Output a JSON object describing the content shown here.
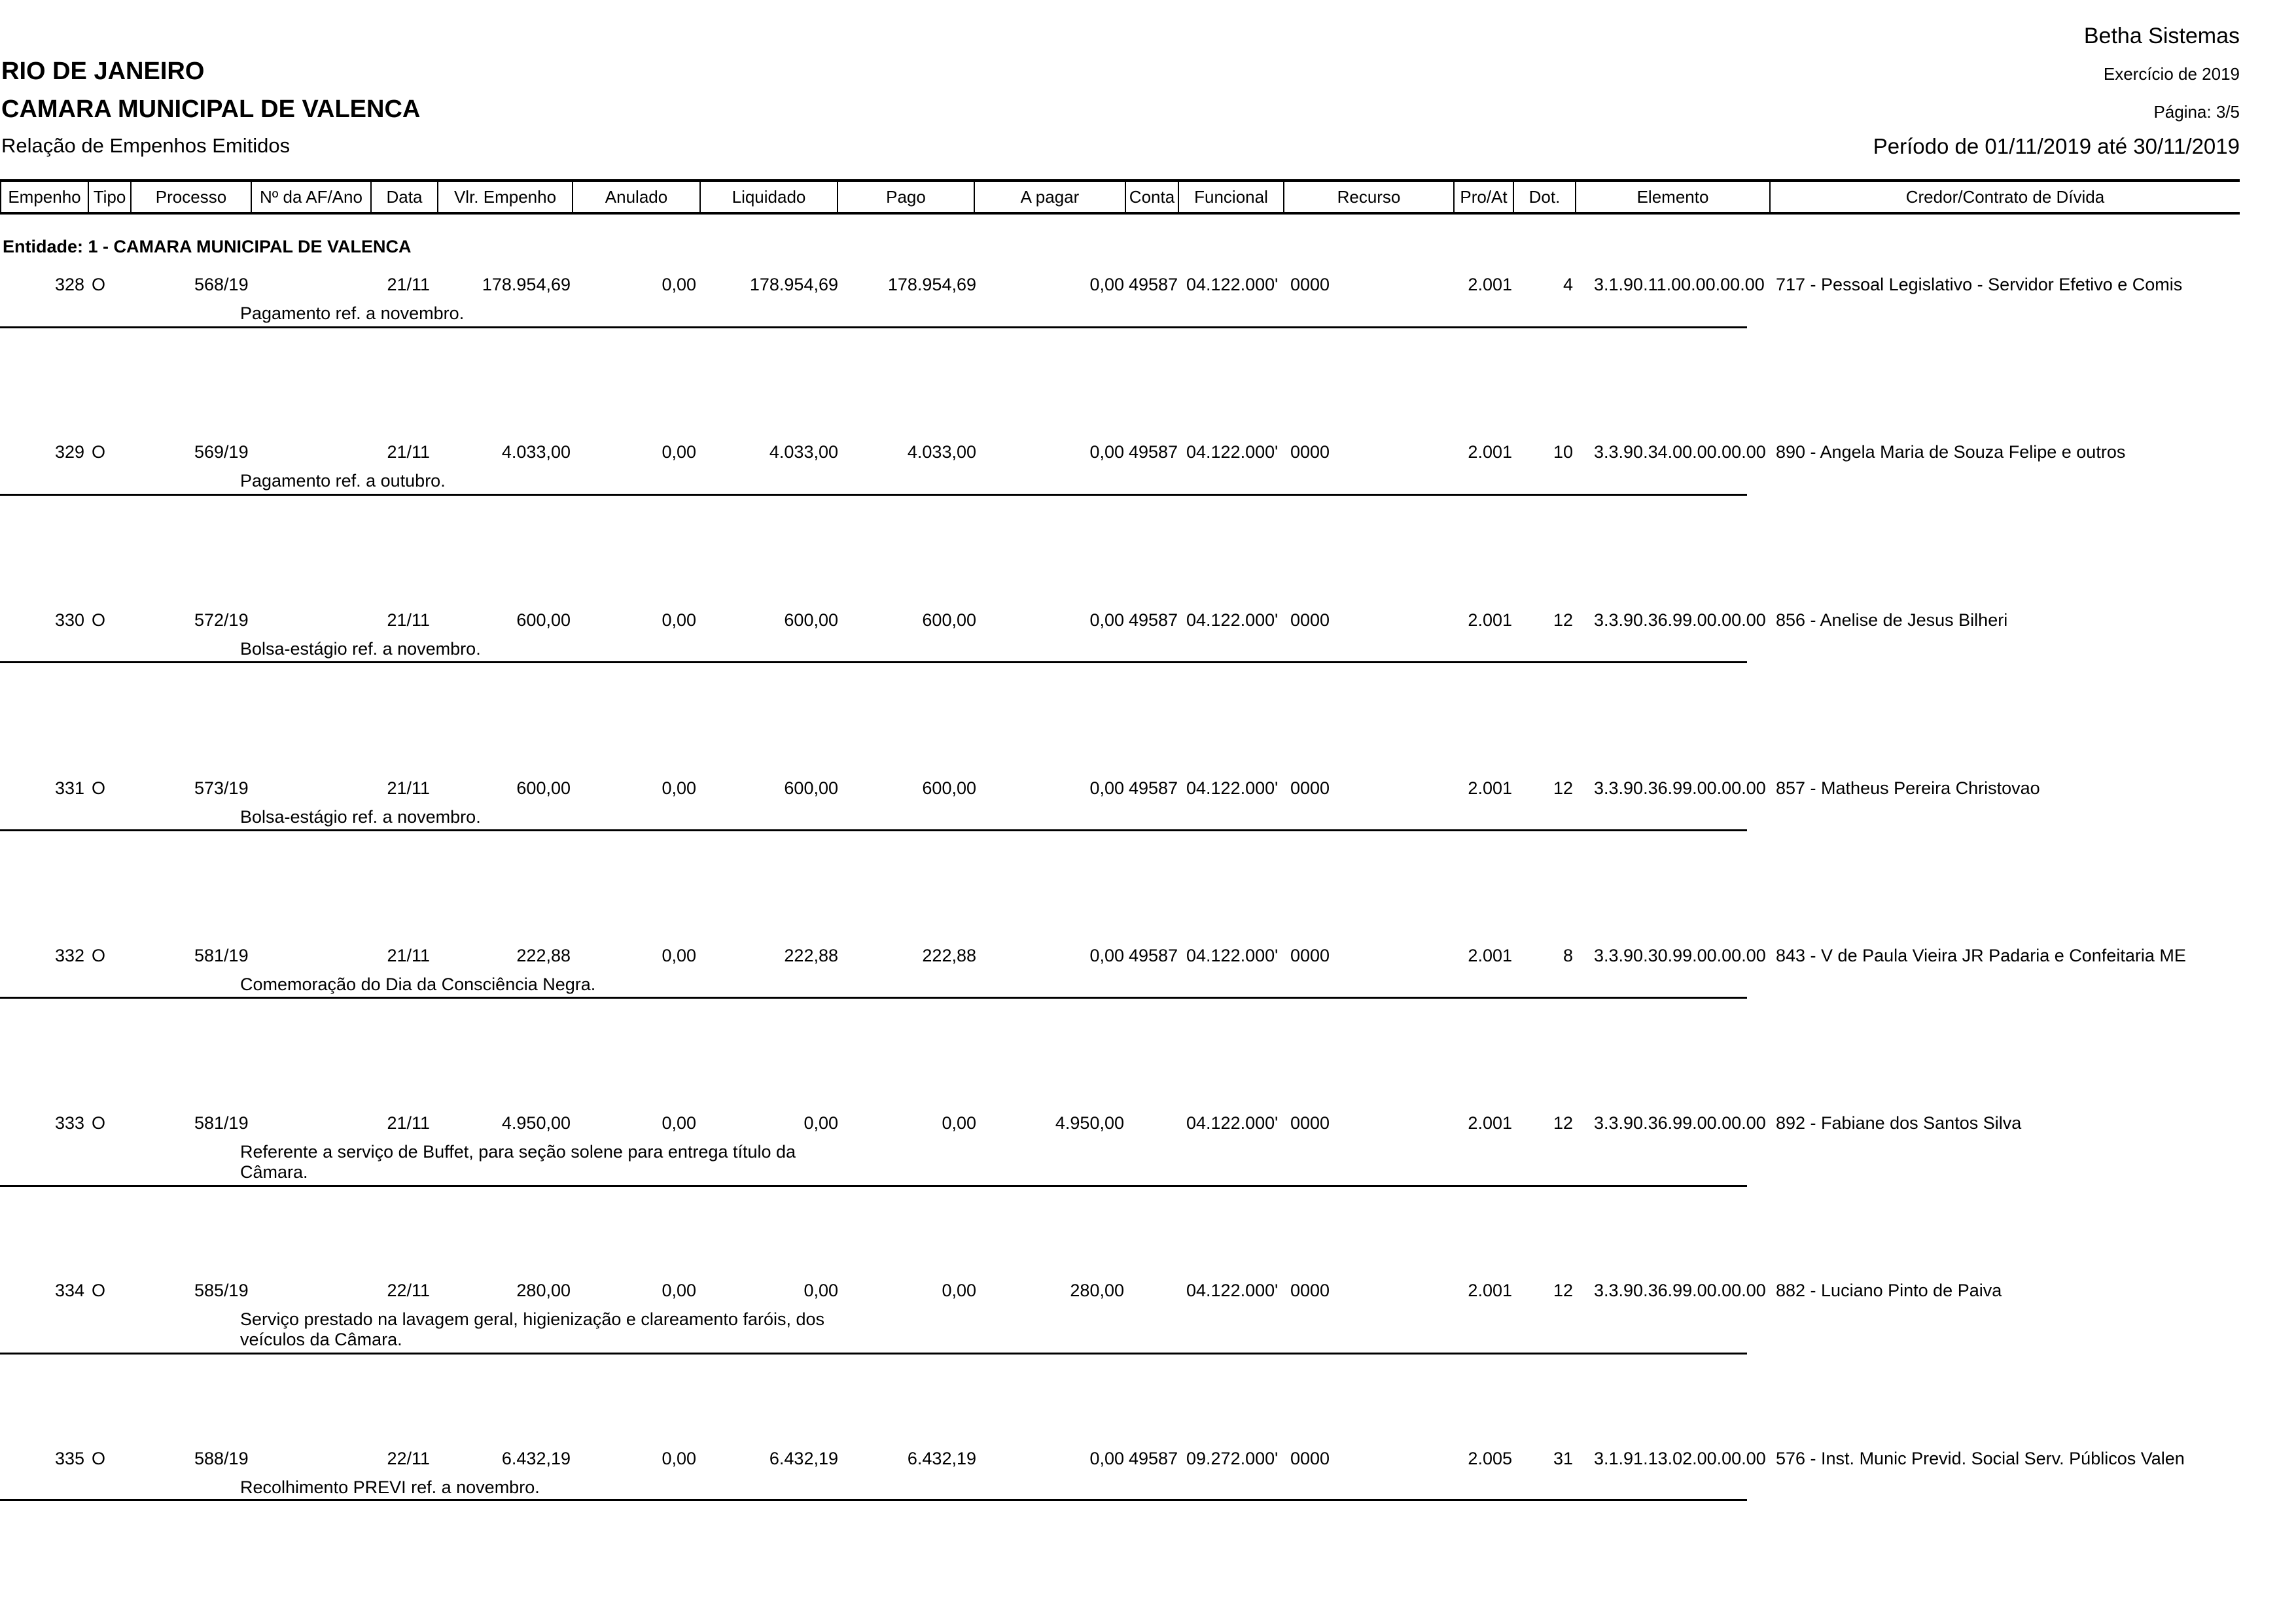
{
  "header": {
    "company": "Betha Sistemas",
    "state": "RIO DE JANEIRO",
    "entity": "CAMARA MUNICIPAL DE VALENCA",
    "report_title": "Relação de Empenhos Emitidos",
    "exercise": "Exercício de 2019",
    "page": "Página: 3/5",
    "period": "Período de 01/11/2019 até 30/11/2019"
  },
  "columns": [
    "Empenho",
    "Tipo",
    "Processo",
    "Nº da AF/Ano",
    "Data",
    "Vlr. Empenho",
    "Anulado",
    "Liquidado",
    "Pago",
    "A pagar",
    "Conta",
    "Funcional",
    "Recurso",
    "Pro/At",
    "Dot.",
    "Elemento",
    "Credor/Contrato de Dívida"
  ],
  "entity_group": "Entidade: 1 - CAMARA MUNICIPAL DE VALENCA",
  "rows": [
    {
      "empenho": "328",
      "tipo": "O",
      "processo": "568/19",
      "data": "21/11",
      "valor": "178.954,69",
      "anulado": "0,00",
      "liquidado": "178.954,69",
      "pago": "178.954,69",
      "a_pagar": "0,00",
      "conta": "49587",
      "funcional": "04.122.000'",
      "recurso": "0000",
      "pro_at": "2.001",
      "dot": "4",
      "elemento": "3.1.90.11.00.00.00.00",
      "credor": "717 - Pessoal Legislativo - Servidor Efetivo e Comis",
      "descricao": "Pagamento ref. a novembro."
    },
    {
      "empenho": "329",
      "tipo": "O",
      "processo": "569/19",
      "data": "21/11",
      "valor": "4.033,00",
      "anulado": "0,00",
      "liquidado": "4.033,00",
      "pago": "4.033,00",
      "a_pagar": "0,00",
      "conta": "49587",
      "funcional": "04.122.000'",
      "recurso": "0000",
      "pro_at": "2.001",
      "dot": "10",
      "elemento": "3.3.90.34.00.00.00.00",
      "credor": "890 - Angela Maria de Souza Felipe e outros",
      "descricao": "Pagamento ref. a outubro."
    },
    {
      "empenho": "330",
      "tipo": "O",
      "processo": "572/19",
      "data": "21/11",
      "valor": "600,00",
      "anulado": "0,00",
      "liquidado": "600,00",
      "pago": "600,00",
      "a_pagar": "0,00",
      "conta": "49587",
      "funcional": "04.122.000'",
      "recurso": "0000",
      "pro_at": "2.001",
      "dot": "12",
      "elemento": "3.3.90.36.99.00.00.00",
      "credor": "856 - Anelise de Jesus Bilheri",
      "descricao": "Bolsa-estágio ref. a novembro."
    },
    {
      "empenho": "331",
      "tipo": "O",
      "processo": "573/19",
      "data": "21/11",
      "valor": "600,00",
      "anulado": "0,00",
      "liquidado": "600,00",
      "pago": "600,00",
      "a_pagar": "0,00",
      "conta": "49587",
      "funcional": "04.122.000'",
      "recurso": "0000",
      "pro_at": "2.001",
      "dot": "12",
      "elemento": "3.3.90.36.99.00.00.00",
      "credor": "857 - Matheus Pereira Christovao",
      "descricao": "Bolsa-estágio ref. a novembro."
    },
    {
      "empenho": "332",
      "tipo": "O",
      "processo": "581/19",
      "data": "21/11",
      "valor": "222,88",
      "anulado": "0,00",
      "liquidado": "222,88",
      "pago": "222,88",
      "a_pagar": "0,00",
      "conta": "49587",
      "funcional": "04.122.000'",
      "recurso": "0000",
      "pro_at": "2.001",
      "dot": "8",
      "elemento": "3.3.90.30.99.00.00.00",
      "credor": "843 - V de Paula Vieira JR Padaria e Confeitaria ME",
      "descricao": "Comemoração do Dia da Consciência Negra."
    },
    {
      "empenho": "333",
      "tipo": "O",
      "processo": "581/19",
      "data": "21/11",
      "valor": "4.950,00",
      "anulado": "0,00",
      "liquidado": "0,00",
      "pago": "0,00",
      "a_pagar": "4.950,00",
      "conta": "",
      "funcional": "04.122.000'",
      "recurso": "0000",
      "pro_at": "2.001",
      "dot": "12",
      "elemento": "3.3.90.36.99.00.00.00",
      "credor": "892 - Fabiane dos Santos Silva",
      "descricao": "Referente a serviço de Buffet, para seção solene para entrega título da Câmara."
    },
    {
      "empenho": "334",
      "tipo": "O",
      "processo": "585/19",
      "data": "22/11",
      "valor": "280,00",
      "anulado": "0,00",
      "liquidado": "0,00",
      "pago": "0,00",
      "a_pagar": "280,00",
      "conta": "",
      "funcional": "04.122.000'",
      "recurso": "0000",
      "pro_at": "2.001",
      "dot": "12",
      "elemento": "3.3.90.36.99.00.00.00",
      "credor": "882 - Luciano Pinto de Paiva",
      "descricao": "Serviço prestado na lavagem geral, higienização e clareamento faróis, dos veículos da Câmara."
    },
    {
      "empenho": "335",
      "tipo": "O",
      "processo": "588/19",
      "data": "22/11",
      "valor": "6.432,19",
      "anulado": "0,00",
      "liquidado": "6.432,19",
      "pago": "6.432,19",
      "a_pagar": "0,00",
      "conta": "49587",
      "funcional": "09.272.000'",
      "recurso": "0000",
      "pro_at": "2.005",
      "dot": "31",
      "elemento": "3.1.91.13.02.00.00.00",
      "credor": "576 - Inst. Munic Previd. Social Serv. Públicos Valen",
      "descricao": "Recolhimento PREVI ref. a novembro."
    }
  ]
}
